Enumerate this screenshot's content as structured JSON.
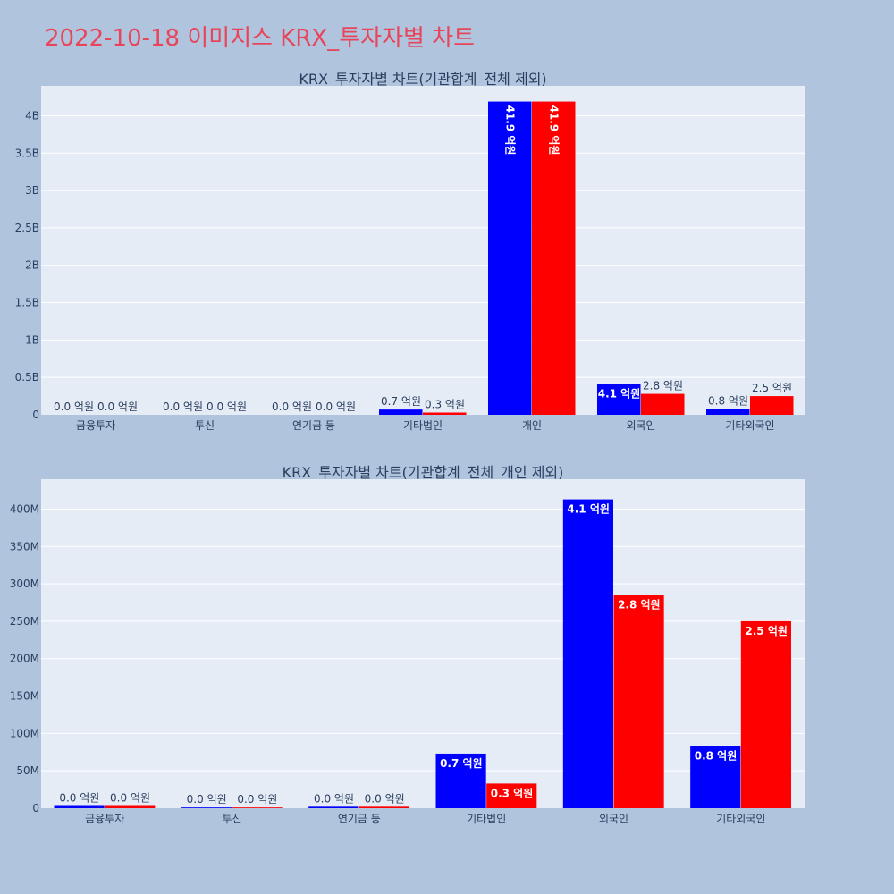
{
  "title": "2022-10-18 이미지스 KRX_투자자별 차트",
  "colors": {
    "series_a": "#0000ff",
    "series_b": "#ff0000",
    "plot_bg": "#e5ecf6",
    "page_bg": "#b0c4de",
    "title": "#e8455a"
  },
  "chart_data": [
    {
      "type": "bar",
      "title": "KRX_투자자별 차트(기관합계_전체 제외)",
      "categories": [
        "금융투자",
        "투신",
        "연기금 등",
        "기타법인",
        "개인",
        "외국인",
        "기타외국인"
      ],
      "ylim": [
        0,
        4400000000
      ],
      "yticks": [
        0,
        500000000,
        1000000000,
        1500000000,
        2000000000,
        2500000000,
        3000000000,
        3500000000,
        4000000000
      ],
      "yticklabels": [
        "0",
        "0.5B",
        "1B",
        "1.5B",
        "2B",
        "2.5B",
        "3B",
        "3.5B",
        "4B"
      ],
      "grid": true,
      "series": [
        {
          "values": [
            0,
            0,
            0,
            70000000,
            4190000000,
            410000000,
            80000000
          ],
          "labels": [
            "0.0 억원",
            "0.0 억원",
            "0.0 억원",
            "0.7 억원",
            "41.9 억원",
            "4.1 억원",
            "0.8 억원"
          ]
        },
        {
          "values": [
            0,
            0,
            0,
            30000000,
            4190000000,
            280000000,
            250000000
          ],
          "labels": [
            "0.0 억원",
            "0.0 억원",
            "0.0 억원",
            "0.3 억원",
            "41.9 억원",
            "2.8 억원",
            "2.5 억원"
          ]
        }
      ]
    },
    {
      "type": "bar",
      "title": "KRX_투자자별 차트(기관합계_전체_개인 제외)",
      "categories": [
        "금융투자",
        "투신",
        "연기금 등",
        "기타법인",
        "외국인",
        "기타외국인"
      ],
      "ylim": [
        0,
        440000000
      ],
      "yticks": [
        0,
        50000000,
        100000000,
        150000000,
        200000000,
        250000000,
        300000000,
        350000000,
        400000000
      ],
      "yticklabels": [
        "0",
        "50M",
        "100M",
        "150M",
        "200M",
        "250M",
        "300M",
        "350M",
        "400M"
      ],
      "grid": true,
      "series": [
        {
          "values": [
            3000000,
            1000000,
            2000000,
            73000000,
            413000000,
            83000000
          ],
          "labels": [
            "0.0 억원",
            "0.0 억원",
            "0.0 억원",
            "0.7 억원",
            "4.1 억원",
            "0.8 억원"
          ]
        },
        {
          "values": [
            3000000,
            1000000,
            2000000,
            33000000,
            285000000,
            250000000
          ],
          "labels": [
            "0.0 억원",
            "0.0 억원",
            "0.0 억원",
            "0.3 억원",
            "2.8 억원",
            "2.5 억원"
          ]
        }
      ]
    }
  ]
}
